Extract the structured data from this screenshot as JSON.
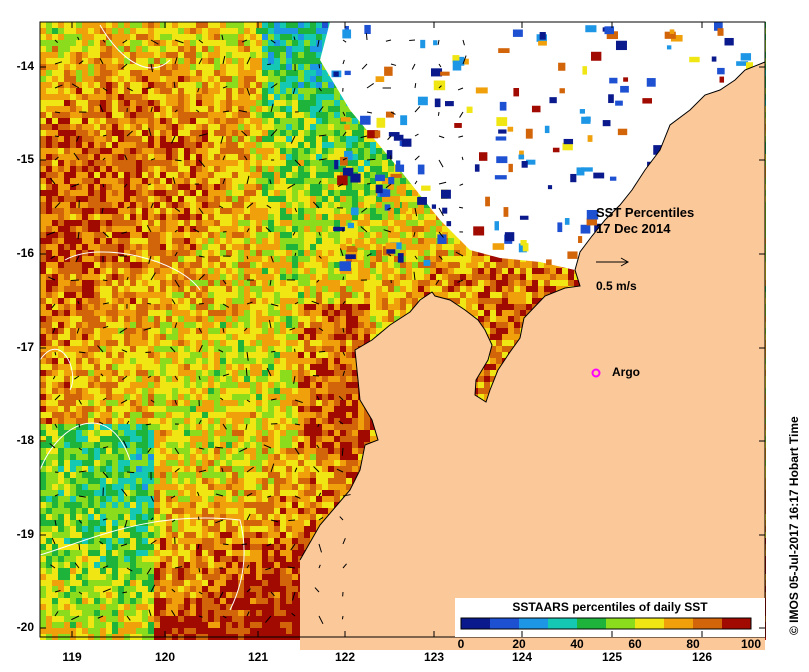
{
  "title_lines": [
    "SST Percentiles",
    "17 Dec 2014"
  ],
  "current_scale_label": "0.5 m/s",
  "argo_label": "Argo",
  "y_ticks": [
    "-14",
    "-15",
    "-16",
    "-17",
    "-18",
    "-19",
    "-20"
  ],
  "x_ticks": [
    "119",
    "120",
    "121",
    "122",
    "123",
    "124",
    "125",
    "126"
  ],
  "colorbar": {
    "title": "SSTAARS percentiles of daily SST",
    "ticks": [
      "0",
      "20",
      "40",
      "60",
      "80",
      "100"
    ],
    "colors": [
      "#0a1a8c",
      "#1e50d2",
      "#1e96e6",
      "#14c8b4",
      "#1eb43c",
      "#8cdc1e",
      "#f0e614",
      "#f0a00a",
      "#d2640a",
      "#a00a00"
    ]
  },
  "credit": "© IMOS 05-Jul-2017 16:17 Hobart Time",
  "colors": {
    "land": "#fbc89a",
    "coast": "#000000",
    "no_data": "#ffffff",
    "argo_marker": "#ff00ff"
  }
}
